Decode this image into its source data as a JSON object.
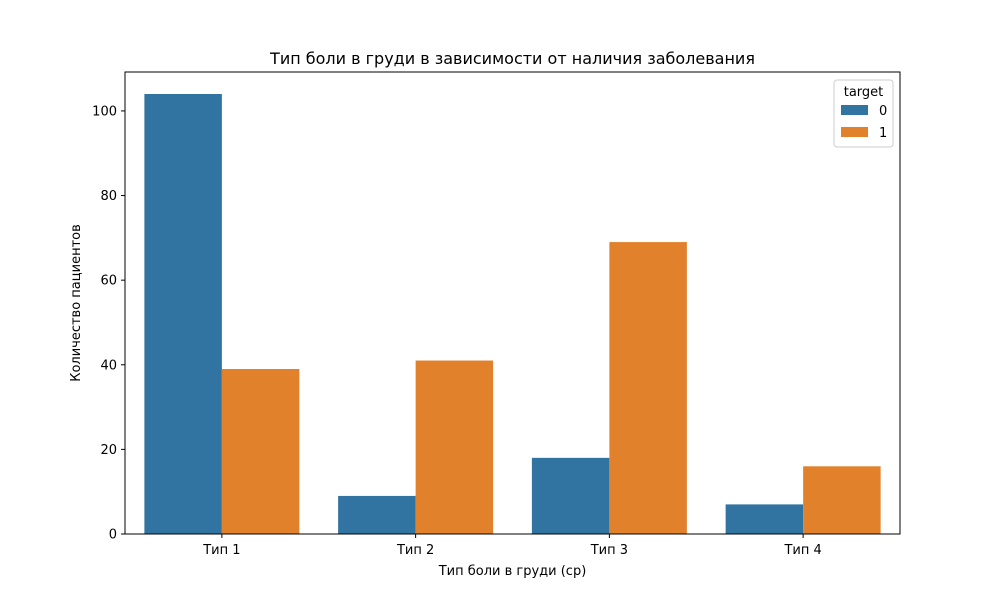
{
  "chart_data": {
    "type": "bar",
    "title": "Тип боли в груди в зависимости от наличия заболевания",
    "xlabel": "Тип боли в груди (cp)",
    "ylabel": "Количество пациентов",
    "categories": [
      "Тип 1",
      "Тип 2",
      "Тип 3",
      "Тип 4"
    ],
    "series": [
      {
        "name": "0",
        "color": "#3274a1",
        "values": [
          104,
          9,
          18,
          7
        ]
      },
      {
        "name": "1",
        "color": "#e1812c",
        "values": [
          39,
          41,
          69,
          16
        ]
      }
    ],
    "ylim": [
      0,
      109.2
    ],
    "yticks": [
      0,
      20,
      40,
      60,
      80,
      100
    ],
    "grid": false,
    "legend": {
      "title": "target",
      "placement": "top-right"
    }
  }
}
